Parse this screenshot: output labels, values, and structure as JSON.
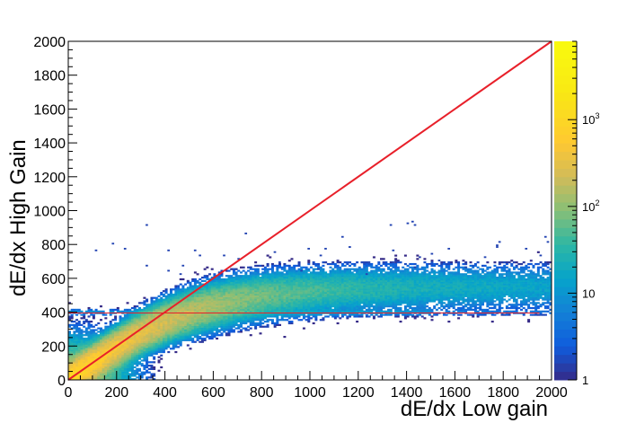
{
  "chart_data": {
    "type": "heatmap",
    "title": "",
    "xlabel": "dE/dx Low gain",
    "ylabel": "dE/dx High Gain",
    "xlim": [
      0,
      2000
    ],
    "ylim": [
      0,
      2000
    ],
    "x_ticks": [
      "0",
      "200",
      "400",
      "600",
      "800",
      "1000",
      "1200",
      "1400",
      "1600",
      "1800",
      "2000"
    ],
    "y_ticks": [
      "0",
      "200",
      "400",
      "600",
      "800",
      "1000",
      "1200",
      "1400",
      "1600",
      "1800",
      "2000"
    ],
    "colorbar": {
      "scale": "log",
      "range": [
        1,
        8000
      ],
      "labels": [
        {
          "value": 1,
          "base": "1",
          "exp": ""
        },
        {
          "value": 10,
          "base": "10",
          "exp": ""
        },
        {
          "value": 100,
          "base": "10",
          "exp": "2"
        },
        {
          "value": 1000,
          "base": "10",
          "exp": "3"
        }
      ]
    },
    "bin_width": 10,
    "density_model": {
      "description_of_structure": "Diagonal band y = x rising from origin, saturating near y ~ 550 beyond x ~ 600; faint horizontal ridge at y ~ 400",
      "saturation_level": 550,
      "band_sigma": 45,
      "peak_count": 8000
    },
    "series": [
      {
        "kind": "reference_line",
        "from": [
          0,
          0
        ],
        "to": [
          2000,
          2000
        ],
        "color": "#e8202a"
      },
      {
        "kind": "reference_line",
        "from": [
          0,
          395
        ],
        "to": [
          1950,
          395
        ],
        "color": "#e8202a"
      }
    ],
    "grid": false,
    "legend": "none"
  }
}
